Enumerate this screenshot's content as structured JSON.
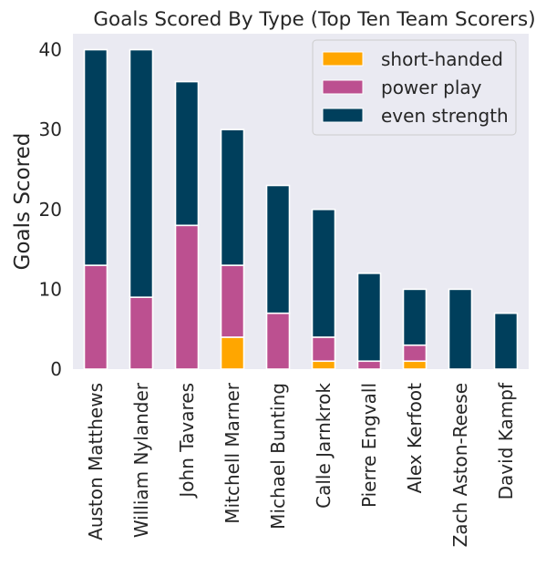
{
  "chart_data": {
    "type": "bar",
    "stacked": true,
    "title": "Goals Scored By Type (Top Ten Team Scorers)",
    "xlabel": "",
    "ylabel": "Goals Scored",
    "ylim": [
      0,
      42
    ],
    "yticks": [
      0,
      10,
      20,
      30,
      40
    ],
    "grid": false,
    "legend_position": "top-right",
    "categories": [
      "Auston Matthews",
      "William Nylander",
      "John Tavares",
      "Mitchell Marner",
      "Michael Bunting",
      "Calle Jarnkrok",
      "Pierre Engvall",
      "Alex Kerfoot",
      "Zach Aston-Reese",
      "David Kampf"
    ],
    "series": [
      {
        "name": "short-handed",
        "color": "#ffa600",
        "values": [
          0,
          0,
          0,
          4,
          0,
          1,
          0,
          1,
          0,
          0
        ]
      },
      {
        "name": "power play",
        "color": "#bc5090",
        "values": [
          13,
          9,
          18,
          9,
          7,
          3,
          1,
          2,
          0,
          0
        ]
      },
      {
        "name": "even strength",
        "color": "#003f5c",
        "values": [
          27,
          31,
          18,
          17,
          16,
          16,
          11,
          7,
          10,
          7
        ]
      }
    ],
    "background": "#eaeaf2"
  }
}
